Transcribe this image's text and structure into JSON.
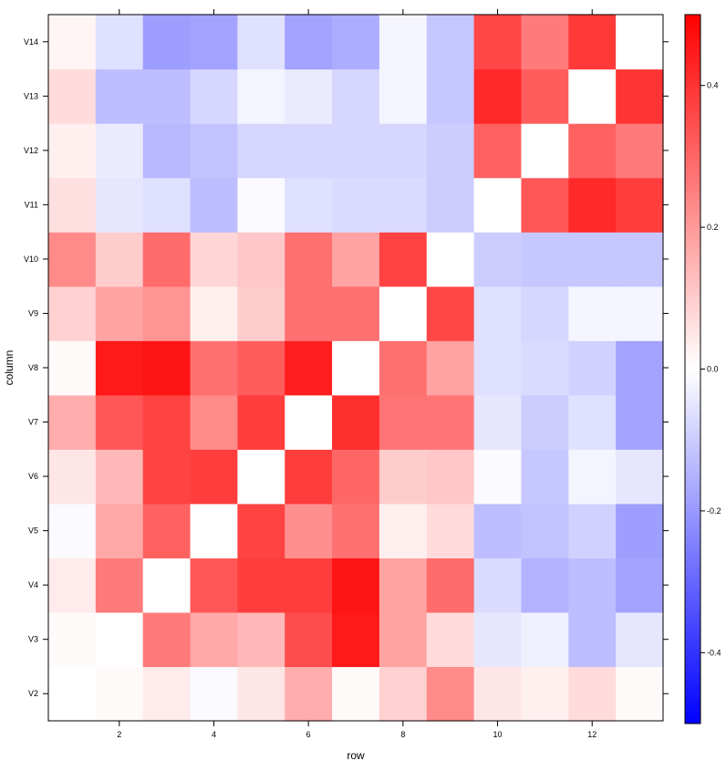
{
  "chart_data": {
    "type": "heatmap",
    "xlabel": "row",
    "ylabel": "column",
    "x_ticks": [
      2,
      4,
      6,
      8,
      10,
      12
    ],
    "x_tick_labels": [
      "2",
      "4",
      "6",
      "8",
      "10",
      "12"
    ],
    "xlim": [
      0.5,
      13.5
    ],
    "row_labels": [
      "V2",
      "V3",
      "V4",
      "V5",
      "V6",
      "V7",
      "V8",
      "V9",
      "V10",
      "V11",
      "V12",
      "V13",
      "V14"
    ],
    "colorbar": {
      "range": [
        -0.5,
        0.5
      ],
      "ticks": [
        -0.4,
        -0.2,
        0.0,
        0.2,
        0.4
      ],
      "tick_labels": [
        "-0.4",
        "-0.2",
        "0.0",
        "0.2",
        "0.4"
      ],
      "colors": {
        "low": "#0000ff",
        "mid": "#ffffff",
        "high": "#ff0000"
      }
    },
    "values": [
      [
        0.0,
        0.01,
        0.04,
        -0.01,
        0.05,
        0.16,
        0.01,
        0.09,
        0.23,
        0.05,
        0.03,
        0.07,
        0.01
      ],
      [
        0.01,
        0.0,
        0.26,
        0.17,
        0.14,
        0.35,
        0.45,
        0.18,
        0.07,
        -0.05,
        -0.03,
        -0.13,
        -0.05
      ],
      [
        0.04,
        0.26,
        0.0,
        0.33,
        0.38,
        0.38,
        0.46,
        0.18,
        0.29,
        -0.07,
        -0.15,
        -0.13,
        -0.18
      ],
      [
        -0.01,
        0.17,
        0.31,
        0.0,
        0.37,
        0.22,
        0.28,
        0.03,
        0.07,
        -0.13,
        -0.12,
        -0.09,
        -0.19
      ],
      [
        0.05,
        0.14,
        0.37,
        0.38,
        0.0,
        0.38,
        0.3,
        0.1,
        0.11,
        -0.01,
        -0.11,
        -0.02,
        -0.05
      ],
      [
        0.16,
        0.33,
        0.37,
        0.23,
        0.38,
        0.0,
        0.41,
        0.27,
        0.27,
        -0.05,
        -0.1,
        -0.06,
        -0.18
      ],
      [
        0.01,
        0.45,
        0.46,
        0.28,
        0.32,
        0.44,
        0.0,
        0.28,
        0.18,
        -0.06,
        -0.07,
        -0.09,
        -0.18
      ],
      [
        0.09,
        0.18,
        0.21,
        0.03,
        0.1,
        0.28,
        0.28,
        0.0,
        0.36,
        -0.06,
        -0.08,
        -0.02,
        -0.02
      ],
      [
        0.23,
        0.1,
        0.29,
        0.08,
        0.11,
        0.28,
        0.18,
        0.37,
        0.0,
        -0.1,
        -0.11,
        -0.11,
        -0.11
      ],
      [
        0.06,
        -0.05,
        -0.06,
        -0.13,
        -0.01,
        -0.06,
        -0.07,
        -0.07,
        -0.1,
        0.0,
        0.33,
        0.42,
        0.38
      ],
      [
        0.03,
        -0.04,
        -0.14,
        -0.12,
        -0.08,
        -0.08,
        -0.08,
        -0.08,
        -0.1,
        0.31,
        0.0,
        0.31,
        0.26
      ],
      [
        0.07,
        -0.13,
        -0.13,
        -0.08,
        -0.02,
        -0.04,
        -0.08,
        -0.02,
        -0.11,
        0.42,
        0.32,
        0.0,
        0.4
      ],
      [
        0.02,
        -0.06,
        -0.19,
        -0.18,
        -0.06,
        -0.18,
        -0.16,
        -0.02,
        -0.11,
        0.36,
        0.26,
        0.39,
        0.0
      ]
    ]
  }
}
